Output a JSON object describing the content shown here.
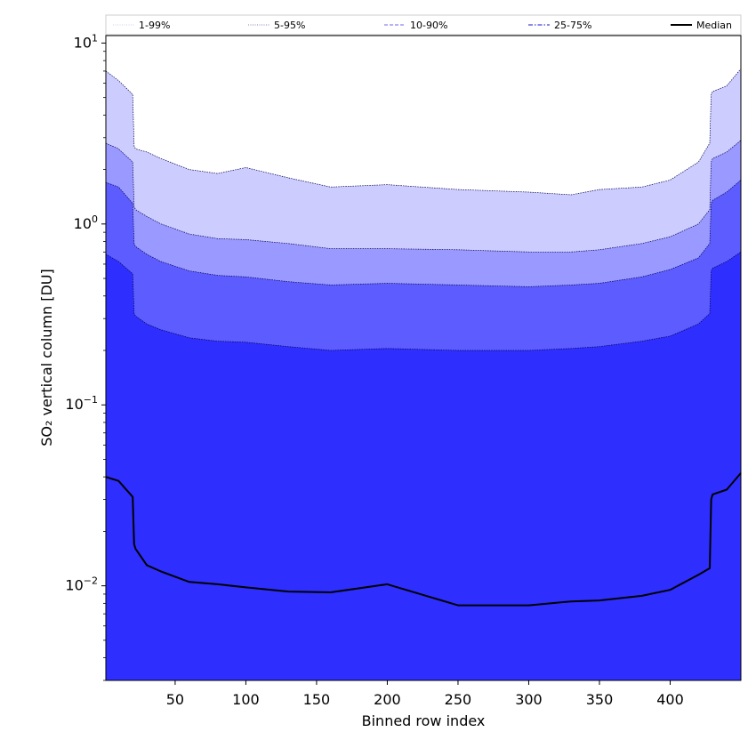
{
  "chart_data": {
    "type": "area",
    "title": "",
    "xlabel": "Binned row index",
    "ylabel": "SO₂ vertical column [DU]",
    "yscale": "log",
    "xlim": [
      1,
      450
    ],
    "ylim": [
      0.003,
      11
    ],
    "x_ticks": [
      50,
      100,
      150,
      200,
      250,
      300,
      350,
      400
    ],
    "y_ticks": [
      {
        "value": 0.01,
        "base": "10",
        "exp": "−2"
      },
      {
        "value": 0.1,
        "base": "10",
        "exp": "−1"
      },
      {
        "value": 1,
        "base": "10",
        "exp": "0"
      },
      {
        "value": 10,
        "base": "10",
        "exp": "1"
      }
    ],
    "grid": false,
    "legend_position": "top",
    "band_colors": [
      "#ccccff",
      "#9999ff",
      "#5c5cff",
      "#2e2eff"
    ],
    "x": [
      1,
      10,
      20,
      21,
      22,
      30,
      40,
      60,
      80,
      100,
      130,
      160,
      200,
      250,
      300,
      330,
      350,
      380,
      400,
      420,
      428,
      429,
      430,
      440,
      450
    ],
    "series": [
      {
        "name": "1-99%",
        "style": "dotted",
        "color": "#ccccff",
        "values": [
          7.0,
          6.2,
          5.2,
          2.7,
          2.6,
          2.5,
          2.3,
          2.0,
          1.9,
          2.05,
          1.8,
          1.6,
          1.65,
          1.55,
          1.5,
          1.45,
          1.55,
          1.6,
          1.75,
          2.2,
          2.8,
          5.2,
          5.4,
          5.8,
          7.2
        ]
      },
      {
        "name": "5-95%",
        "style": "dotted",
        "color": "#9999ff",
        "values": [
          2.8,
          2.6,
          2.2,
          1.25,
          1.2,
          1.1,
          1.0,
          0.88,
          0.83,
          0.82,
          0.78,
          0.73,
          0.73,
          0.72,
          0.7,
          0.7,
          0.72,
          0.78,
          0.85,
          1.0,
          1.2,
          2.2,
          2.3,
          2.5,
          2.9
        ]
      },
      {
        "name": "10-90%",
        "style": "dashed",
        "color": "#5c5cff",
        "values": [
          1.7,
          1.6,
          1.3,
          0.78,
          0.75,
          0.68,
          0.62,
          0.55,
          0.52,
          0.51,
          0.48,
          0.46,
          0.47,
          0.46,
          0.45,
          0.46,
          0.47,
          0.51,
          0.56,
          0.65,
          0.78,
          1.3,
          1.35,
          1.5,
          1.75
        ]
      },
      {
        "name": "25-75%",
        "style": "dashdot",
        "color": "#2e2eff",
        "values": [
          0.68,
          0.62,
          0.53,
          0.32,
          0.31,
          0.28,
          0.26,
          0.235,
          0.225,
          0.222,
          0.21,
          0.2,
          0.205,
          0.2,
          0.2,
          0.205,
          0.21,
          0.225,
          0.24,
          0.28,
          0.32,
          0.55,
          0.57,
          0.62,
          0.7
        ]
      },
      {
        "name": "Median",
        "style": "solid",
        "color": "#000000",
        "values": [
          0.04,
          0.038,
          0.031,
          0.017,
          0.016,
          0.013,
          0.012,
          0.0105,
          0.0102,
          0.0098,
          0.0093,
          0.0092,
          0.0102,
          0.0078,
          0.0078,
          0.0082,
          0.0083,
          0.0088,
          0.0095,
          0.0115,
          0.0125,
          0.03,
          0.032,
          0.034,
          0.042
        ]
      }
    ]
  }
}
